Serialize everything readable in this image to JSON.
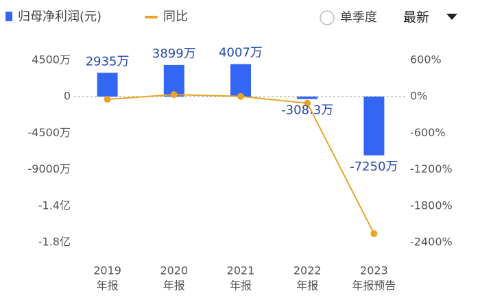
{
  "chart_data": {
    "type": "bar_line",
    "legend": {
      "bar": "归母净利润(元)",
      "line": "同比"
    },
    "controls": {
      "radio": "单季度",
      "dropdown": "最新"
    },
    "categories": [
      [
        "2019",
        "年报"
      ],
      [
        "2020",
        "年报"
      ],
      [
        "2021",
        "年报"
      ],
      [
        "2022",
        "年报"
      ],
      [
        "2023",
        "年报预告"
      ]
    ],
    "series": [
      {
        "name": "归母净利润(元)",
        "color": "#3366f2",
        "values": [
          2935,
          3899,
          4007,
          -308.3,
          -7250
        ],
        "value_labels": [
          "2935万",
          "3899万",
          "4007万",
          "-308.3万",
          "-7250万"
        ]
      },
      {
        "name": "同比",
        "color": "#eaa32a",
        "axis": "y2",
        "values": [
          -45,
          33,
          3,
          -108,
          -2252
        ]
      }
    ],
    "ylim": [
      -19500,
      6000
    ],
    "yticks": [
      {
        "value": 4500,
        "label": "4500万"
      },
      0,
      {
        "value": -4500,
        "label": "-4500万"
      },
      {
        "value": -9000,
        "label": "-9000万"
      },
      {
        "value": -13500,
        "label": "-1.4亿"
      },
      {
        "value": -18000,
        "label": "-1.8亿"
      }
    ],
    "y2lim": [
      -2600,
      800
    ],
    "y2ticks": [
      {
        "value": 600,
        "label": "600%"
      },
      {
        "value": 0,
        "label": "0%"
      },
      {
        "value": -600,
        "label": "-600%"
      },
      {
        "value": -1200,
        "label": "-1200%"
      },
      {
        "value": -1800,
        "label": "-1800%"
      },
      {
        "value": -2400,
        "label": "-2400%"
      }
    ]
  }
}
